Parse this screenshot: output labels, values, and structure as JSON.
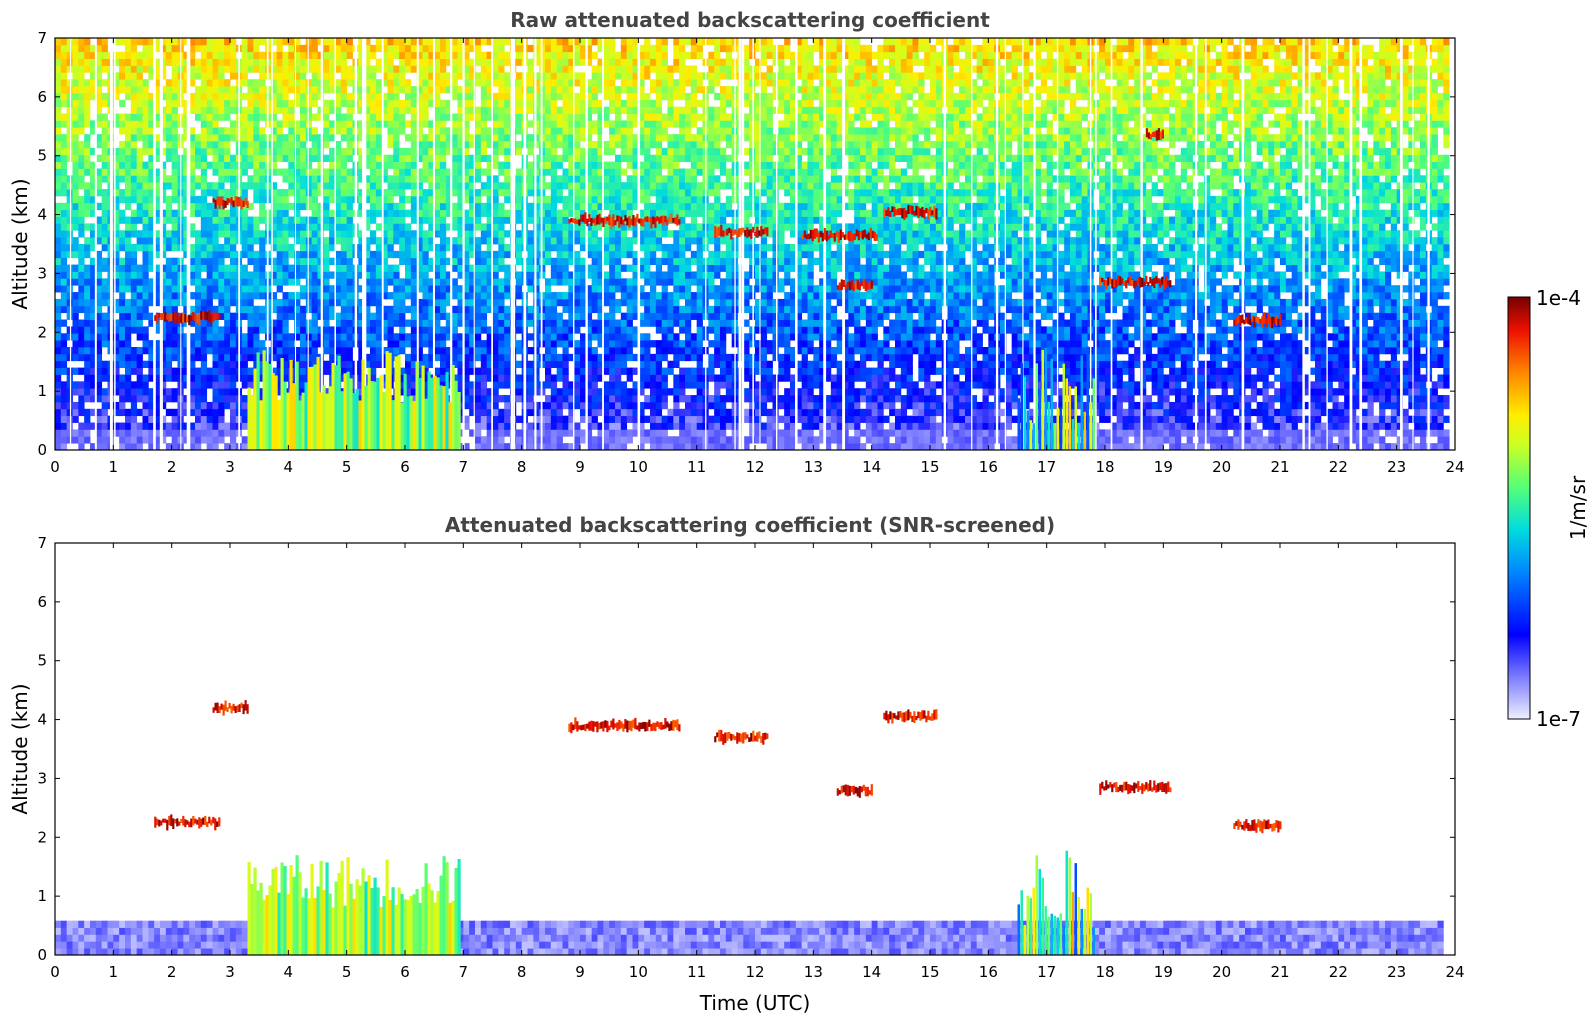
{
  "chart_data": [
    {
      "type": "heatmap",
      "title": "Raw attenuated backscattering coefficient",
      "xlabel": "",
      "ylabel": "Altitude (km)",
      "xlim": [
        0,
        24
      ],
      "ylim": [
        0,
        7
      ],
      "xticks": [
        "0",
        "1",
        "2",
        "3",
        "4",
        "5",
        "6",
        "7",
        "8",
        "9",
        "10",
        "11",
        "12",
        "13",
        "14",
        "15",
        "16",
        "17",
        "18",
        "19",
        "20",
        "21",
        "22",
        "23",
        "24"
      ],
      "yticks": [
        "0",
        "1",
        "2",
        "3",
        "4",
        "5",
        "6",
        "7"
      ],
      "grid": false,
      "colorbar": {
        "label": "1/m/sr",
        "min_label": "1e-7",
        "max_label": "1e-4",
        "scale": "log",
        "colormap": "jet"
      },
      "features": [
        {
          "kind": "cloud layer",
          "t_start": 2.7,
          "t_end": 3.3,
          "alt_km": 4.2
        },
        {
          "kind": "cloud layer",
          "t_start": 1.7,
          "t_end": 2.8,
          "alt_km": 2.25
        },
        {
          "kind": "cloud layer",
          "t_start": 8.8,
          "t_end": 10.7,
          "alt_km": 3.9
        },
        {
          "kind": "cloud layer",
          "t_start": 11.3,
          "t_end": 12.2,
          "alt_km": 3.7
        },
        {
          "kind": "cloud layer",
          "t_start": 12.8,
          "t_end": 14.1,
          "alt_km": 3.65
        },
        {
          "kind": "cloud layer",
          "t_start": 13.4,
          "t_end": 14.0,
          "alt_km": 2.8
        },
        {
          "kind": "cloud layer",
          "t_start": 14.2,
          "t_end": 15.1,
          "alt_km": 4.05
        },
        {
          "kind": "cloud layer",
          "t_start": 17.9,
          "t_end": 19.1,
          "alt_km": 2.85
        },
        {
          "kind": "cloud layer",
          "t_start": 20.2,
          "t_end": 21.0,
          "alt_km": 2.2
        },
        {
          "kind": "cloud layer",
          "t_start": 18.7,
          "t_end": 19.0,
          "alt_km": 5.35
        },
        {
          "kind": "boundary layer aerosol",
          "t_start": 3.3,
          "t_end": 6.9,
          "alt_km": 0.8
        },
        {
          "kind": "precipitation fall streak",
          "t_start": 16.5,
          "t_end": 17.8,
          "alt_km": 1.5
        }
      ]
    },
    {
      "type": "heatmap",
      "title": "Attenuated backscattering coefficient (SNR-screened)",
      "xlabel": "Time (UTC)",
      "ylabel": "Altitude (km)",
      "xlim": [
        0,
        24
      ],
      "ylim": [
        0,
        7
      ],
      "xticks": [
        "0",
        "1",
        "2",
        "3",
        "4",
        "5",
        "6",
        "7",
        "8",
        "9",
        "10",
        "11",
        "12",
        "13",
        "14",
        "15",
        "16",
        "17",
        "18",
        "19",
        "20",
        "21",
        "22",
        "23",
        "24"
      ],
      "yticks": [
        "0",
        "1",
        "2",
        "3",
        "4",
        "5",
        "6",
        "7"
      ],
      "grid": false,
      "colorbar": {
        "label": "1/m/sr",
        "min_label": "1e-7",
        "max_label": "1e-4",
        "scale": "log",
        "colormap": "jet"
      },
      "features": [
        {
          "kind": "cloud layer",
          "t_start": 2.7,
          "t_end": 3.3,
          "alt_km": 4.2
        },
        {
          "kind": "cloud layer",
          "t_start": 1.7,
          "t_end": 2.8,
          "alt_km": 2.25
        },
        {
          "kind": "cloud layer",
          "t_start": 8.8,
          "t_end": 10.7,
          "alt_km": 3.9
        },
        {
          "kind": "cloud layer",
          "t_start": 11.3,
          "t_end": 12.2,
          "alt_km": 3.7
        },
        {
          "kind": "cloud layer",
          "t_start": 13.4,
          "t_end": 14.0,
          "alt_km": 2.8
        },
        {
          "kind": "cloud layer",
          "t_start": 14.2,
          "t_end": 15.1,
          "alt_km": 4.05
        },
        {
          "kind": "cloud layer",
          "t_start": 17.9,
          "t_end": 19.1,
          "alt_km": 2.85
        },
        {
          "kind": "cloud layer",
          "t_start": 20.2,
          "t_end": 21.0,
          "alt_km": 2.2
        },
        {
          "kind": "boundary layer aerosol",
          "t_start": 3.3,
          "t_end": 6.9,
          "alt_km": 0.8
        },
        {
          "kind": "precipitation fall streak",
          "t_start": 16.5,
          "t_end": 17.8,
          "alt_km": 1.5
        }
      ]
    }
  ],
  "colorbar": {
    "label": "1/m/sr",
    "min_label": "1e-7",
    "max_label": "1e-4"
  }
}
